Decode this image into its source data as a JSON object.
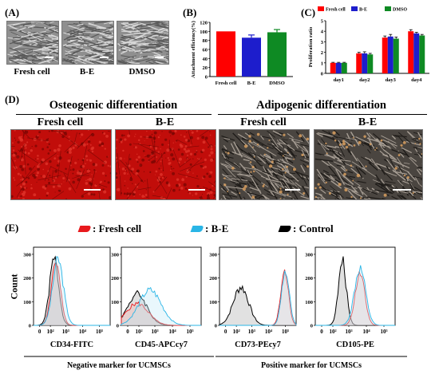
{
  "panelA": {
    "label": "(A)",
    "images": [
      {
        "caption": "Fresh cell"
      },
      {
        "caption": "B-E"
      },
      {
        "caption": "DMSO"
      }
    ]
  },
  "panelB": {
    "label": "(B)",
    "chart_data": {
      "type": "bar",
      "categories": [
        "Fresh cell",
        "B-E",
        "DMSO"
      ],
      "values": [
        100,
        86,
        98
      ],
      "errors": [
        0,
        6,
        6
      ],
      "colors": [
        "#ff0000",
        "#1d1dcc",
        "#0e8a23"
      ],
      "ylabel": "Attachment efficiency(%)",
      "ylim": [
        0,
        120
      ],
      "yticks": [
        0,
        20,
        40,
        60,
        80,
        100,
        120
      ]
    }
  },
  "panelC": {
    "label": "(C)",
    "chart_data": {
      "type": "bar",
      "categories": [
        "day1",
        "day2",
        "day3",
        "day4"
      ],
      "series": [
        {
          "name": "Fresh cell",
          "color": "#ff0000",
          "values": [
            1.0,
            1.9,
            3.4,
            4.0
          ],
          "errors": [
            0.05,
            0.1,
            0.15,
            0.15
          ]
        },
        {
          "name": "B-E",
          "color": "#1d1dcc",
          "values": [
            1.0,
            1.9,
            3.5,
            3.8
          ],
          "errors": [
            0.05,
            0.15,
            0.2,
            0.1
          ]
        },
        {
          "name": "DMSO",
          "color": "#0e8a23",
          "values": [
            1.0,
            1.8,
            3.3,
            3.6
          ],
          "errors": [
            0.05,
            0.1,
            0.15,
            0.1
          ]
        }
      ],
      "ylabel": "Proliferation ratio",
      "ylim": [
        0,
        5
      ],
      "yticks": [
        0,
        1,
        2,
        3,
        4,
        5
      ]
    }
  },
  "panelD": {
    "label": "(D)",
    "headers": [
      "Osteogenic differentiation",
      "Adipogenic differentiation"
    ],
    "images": [
      {
        "caption": "Fresh cell",
        "stain": "#c4100c"
      },
      {
        "caption": "B-E",
        "stain": "#c4100c"
      },
      {
        "caption": "Fresh cell",
        "stain": "#3a3530"
      },
      {
        "caption": "B-E",
        "stain": "#3a3530"
      }
    ]
  },
  "panelE": {
    "label": "(E)",
    "legend": [
      {
        "text": ": Fresh cell",
        "color": "#e8191d"
      },
      {
        "text": ": B-E",
        "color": "#29b5e6"
      },
      {
        "text": ": Control",
        "color": "#000000"
      }
    ],
    "ylabel": "Count",
    "yticks": [
      0,
      100,
      200,
      300
    ],
    "xticks": [
      "0",
      "10²",
      "10³",
      "10⁴",
      "10⁵"
    ],
    "histograms": [
      {
        "marker": "CD34-FITC"
      },
      {
        "marker": "CD45-APCcy7"
      },
      {
        "marker": "CD73-PEcy7"
      },
      {
        "marker": "CD105-PE"
      }
    ],
    "groups": [
      "Negative marker for UCMSCs",
      "Positive marker for UCMSCs"
    ]
  }
}
